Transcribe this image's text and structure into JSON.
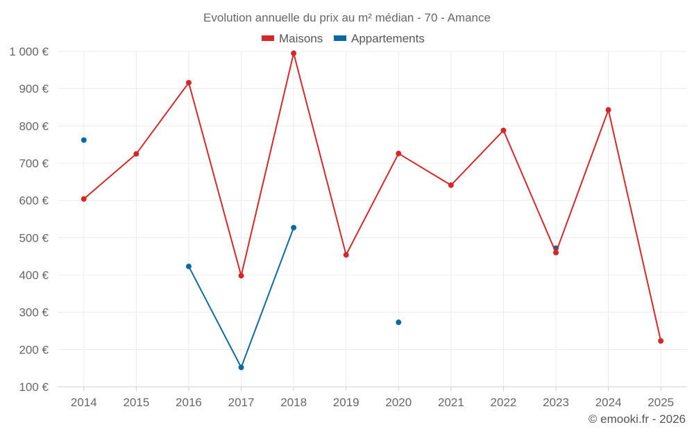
{
  "chart_data": {
    "type": "line",
    "title": "Evolution annuelle du prix au m² médian - 70 - Amance",
    "categories": [
      "2014",
      "2015",
      "2016",
      "2017",
      "2018",
      "2019",
      "2020",
      "2021",
      "2022",
      "2023",
      "2024",
      "2025"
    ],
    "series": [
      {
        "name": "Maisons",
        "color": "#d62728",
        "values": [
          604,
          725,
          916,
          398,
          995,
          454,
          726,
          641,
          788,
          460,
          843,
          223
        ]
      },
      {
        "name": "Appartements",
        "color": "#0b6aa2",
        "values": [
          762,
          null,
          423,
          152,
          527,
          null,
          273,
          null,
          null,
          472,
          null,
          null
        ]
      }
    ],
    "y_ticks": [
      100,
      200,
      300,
      400,
      500,
      600,
      700,
      800,
      900,
      1000
    ],
    "y_tick_labels": [
      "100 €",
      "200 €",
      "300 €",
      "400 €",
      "500 €",
      "600 €",
      "700 €",
      "800 €",
      "900 €",
      "1 000 €"
    ],
    "ylim": [
      100,
      1000
    ],
    "xlabel": "",
    "ylabel": "",
    "grid": true,
    "legend_position": "top-center"
  },
  "footer": "© emooki.fr - 2026"
}
